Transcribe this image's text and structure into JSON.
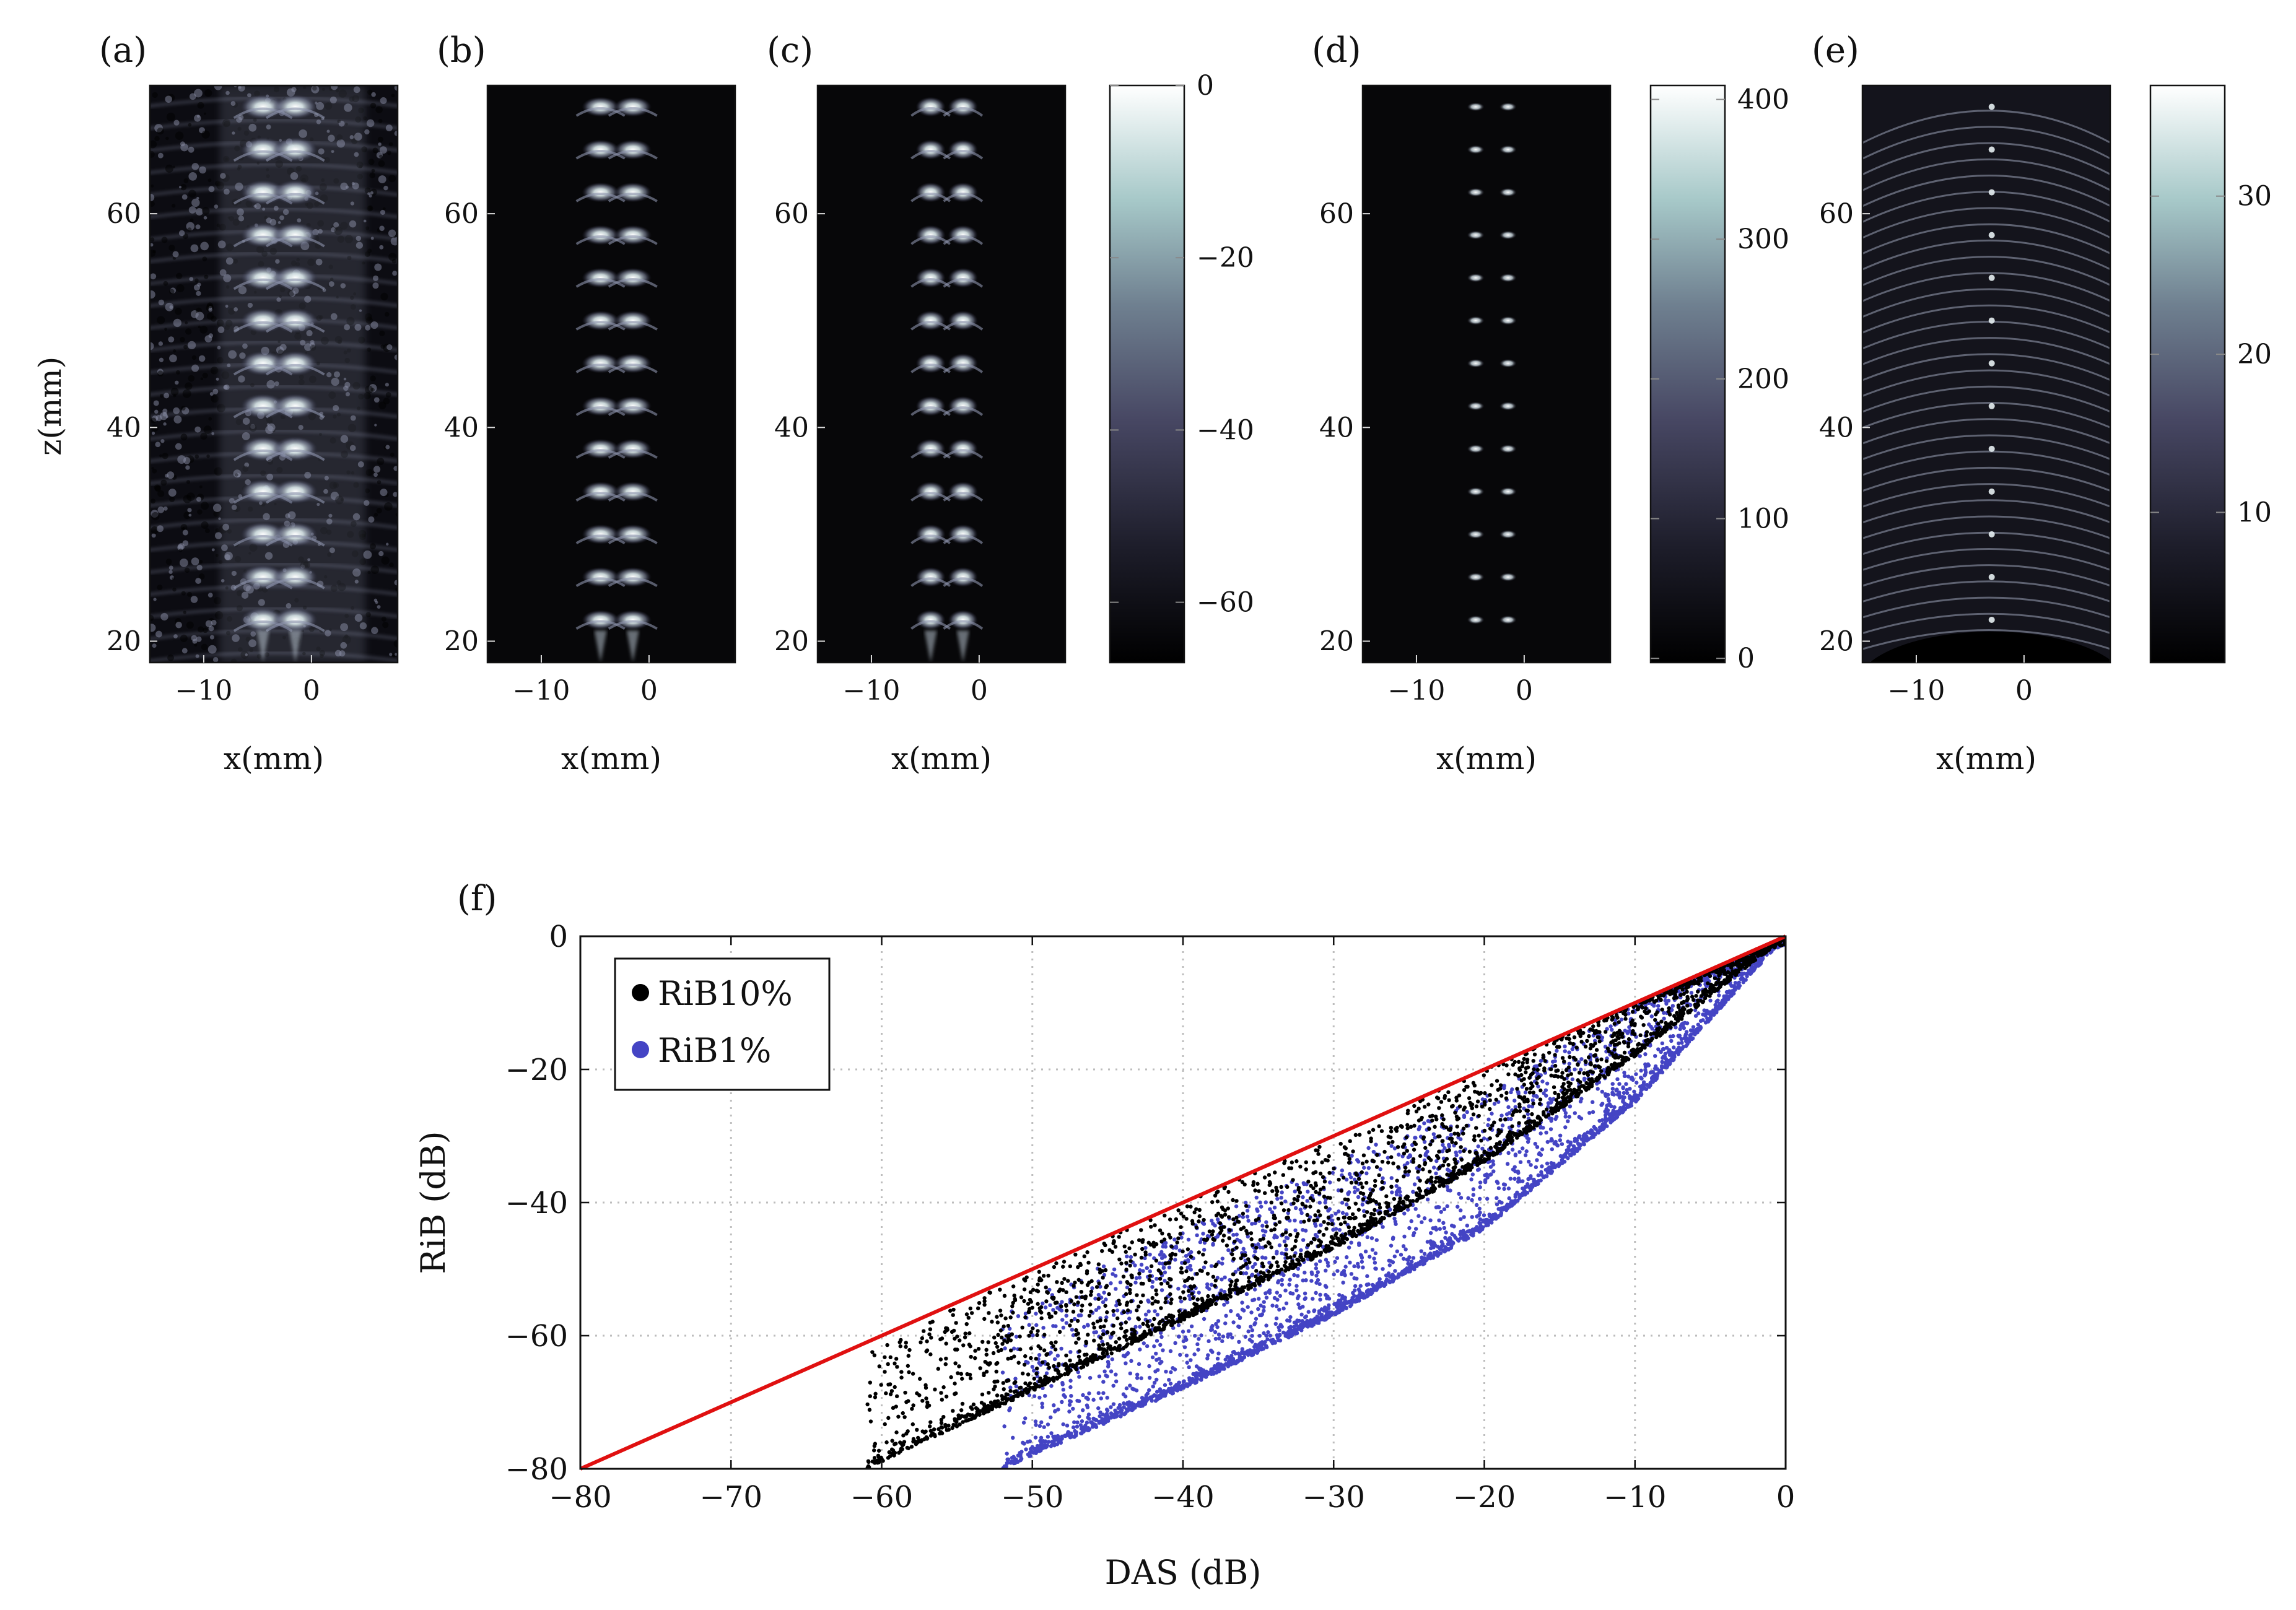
{
  "figure": {
    "panels": [
      {
        "id": "a",
        "label": "(a)",
        "ylabel": "z(mm)",
        "xlabel": "x(mm)",
        "xticks": [
          "−10",
          "0"
        ],
        "yticks": [
          "60",
          "40",
          "20"
        ],
        "colorbar": null,
        "style": "speckle"
      },
      {
        "id": "b",
        "label": "(b)",
        "ylabel": "",
        "xlabel": "x(mm)",
        "xticks": [
          "−10",
          "0"
        ],
        "yticks": [
          "60",
          "40",
          "20"
        ],
        "colorbar": null,
        "style": "clean"
      },
      {
        "id": "c",
        "label": "(c)",
        "ylabel": "",
        "xlabel": "x(mm)",
        "xticks": [
          "−10",
          "0"
        ],
        "yticks": [
          "60",
          "40",
          "20"
        ],
        "colorbar": {
          "ticks": [
            "0",
            "−20",
            "−40",
            "−60"
          ],
          "values": [
            0,
            -20,
            -40,
            -60
          ],
          "range": [
            -67,
            0
          ]
        },
        "style": "clean2"
      },
      {
        "id": "d",
        "label": "(d)",
        "ylabel": "",
        "xlabel": "x(mm)",
        "xticks": [
          "−10",
          "0"
        ],
        "yticks": [
          "60",
          "40",
          "20"
        ],
        "colorbar": {
          "ticks": [
            "400",
            "300",
            "200",
            "100",
            "0"
          ],
          "values": [
            400,
            300,
            200,
            100,
            0
          ],
          "range": [
            -3,
            410
          ]
        },
        "style": "dots"
      },
      {
        "id": "e",
        "label": "(e)",
        "ylabel": "",
        "xlabel": "x(mm)",
        "xticks": [
          "−10",
          "0"
        ],
        "yticks": [
          "60",
          "40",
          "20"
        ],
        "colorbar": {
          "ticks": [
            "30",
            "20",
            "10"
          ],
          "values": [
            30,
            20,
            10
          ],
          "range": [
            0.5,
            37
          ]
        },
        "style": "arcs"
      }
    ]
  },
  "chart_data": [
    {
      "type": "image",
      "description_panels": [
        "a",
        "b",
        "c",
        "d",
        "e"
      ],
      "x_range_mm": [
        -15,
        8
      ],
      "z_range_mm": [
        18,
        72
      ],
      "xticks": [
        -10,
        0
      ],
      "zticks": [
        20,
        40,
        60
      ],
      "scatterer_columns_mm": [
        -4.5,
        -1.5
      ],
      "scatterer_rows_mm": [
        22,
        26,
        30,
        34,
        38,
        42,
        46,
        50,
        54,
        58,
        62,
        66,
        70
      ]
    },
    {
      "type": "scatter",
      "label": "(f)",
      "title": "",
      "xlabel": "DAS (dB)",
      "ylabel": "RiB (dB)",
      "xlim": [
        -80,
        0
      ],
      "ylim": [
        -80,
        0
      ],
      "xticks": [
        -80,
        -70,
        -60,
        -50,
        -40,
        -30,
        -20,
        -10,
        0
      ],
      "yticks": [
        0,
        -20,
        -40,
        -60,
        -80
      ],
      "xtick_labels": [
        "−80",
        "−70",
        "−60",
        "−50",
        "−40",
        "−30",
        "−20",
        "−10",
        "0"
      ],
      "ytick_labels": [
        "0",
        "−20",
        "−40",
        "−60",
        "−80"
      ],
      "grid": true,
      "legend_position": "top-left",
      "reference_line": {
        "name": "identity",
        "x": [
          -80,
          0
        ],
        "y": [
          -80,
          0
        ],
        "color": "#e01010"
      },
      "series": [
        {
          "name": "RiB10%",
          "color": "#000000",
          "trend": {
            "x": [
              -61,
              -45,
              -30,
              -20,
              -10,
              0
            ],
            "y": [
              -80,
              -63,
              -47,
              -34,
              -18,
              0
            ]
          },
          "spread_above": 18,
          "count": 3000
        },
        {
          "name": "RiB1%",
          "color": "#4444c4",
          "trend": {
            "x": [
              -52,
              -40,
              -30,
              -20,
              -10,
              0
            ],
            "y": [
              -80,
              -68,
              -57,
              -44,
              -25,
              0
            ]
          },
          "spread_above": 24,
          "count": 3500
        }
      ]
    }
  ]
}
